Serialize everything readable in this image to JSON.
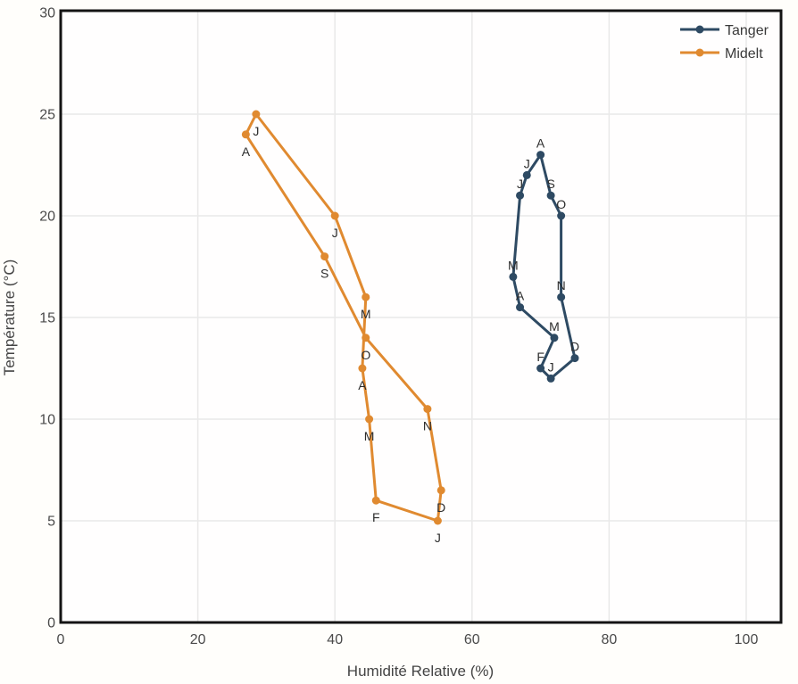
{
  "chart_data": {
    "type": "line",
    "variant": "hythergraph-climograph-closed-loop",
    "title": "",
    "xlabel": "Humidité Relative (%)",
    "ylabel": "Température (°C)",
    "xlim": [
      0,
      105
    ],
    "ylim": [
      0,
      30
    ],
    "xticks": [
      0,
      20,
      40,
      60,
      80,
      100
    ],
    "yticks": [
      0,
      5,
      10,
      15,
      20,
      25,
      30
    ],
    "grid": true,
    "legend_position": "top-right-inside",
    "month_initials": [
      "J",
      "F",
      "M",
      "A",
      "M",
      "J",
      "J",
      "A",
      "S",
      "O",
      "N",
      "D"
    ],
    "style": {
      "frame_color": "#141414",
      "grid_color": "#e9e9e9",
      "tick_color": "#4a4a4a",
      "axis_title_color": "#444444",
      "month_label_color": "#2d2d2d",
      "background": "#fffefe"
    },
    "series": [
      {
        "name": "Tanger",
        "color": "#2e4a63",
        "label_side": "above",
        "points": [
          {
            "month": "J",
            "humidity": 71.5,
            "temp": 12
          },
          {
            "month": "F",
            "humidity": 70,
            "temp": 12.5
          },
          {
            "month": "M",
            "humidity": 72,
            "temp": 14
          },
          {
            "month": "A",
            "humidity": 67,
            "temp": 15.5
          },
          {
            "month": "M",
            "humidity": 66,
            "temp": 17
          },
          {
            "month": "J",
            "humidity": 67,
            "temp": 21
          },
          {
            "month": "J",
            "humidity": 68,
            "temp": 22
          },
          {
            "month": "A",
            "humidity": 70,
            "temp": 23
          },
          {
            "month": "S",
            "humidity": 71.5,
            "temp": 21
          },
          {
            "month": "O",
            "humidity": 73,
            "temp": 20
          },
          {
            "month": "N",
            "humidity": 73,
            "temp": 16
          },
          {
            "month": "D",
            "humidity": 75,
            "temp": 13
          }
        ]
      },
      {
        "name": "Midelt",
        "color": "#e08a30",
        "label_side": "below",
        "points": [
          {
            "month": "J",
            "humidity": 55,
            "temp": 5
          },
          {
            "month": "F",
            "humidity": 46,
            "temp": 6
          },
          {
            "month": "M",
            "humidity": 45,
            "temp": 10
          },
          {
            "month": "A",
            "humidity": 44,
            "temp": 12.5
          },
          {
            "month": "M",
            "humidity": 44.5,
            "temp": 16
          },
          {
            "month": "J",
            "humidity": 40,
            "temp": 20
          },
          {
            "month": "J",
            "humidity": 28.5,
            "temp": 25
          },
          {
            "month": "A",
            "humidity": 27,
            "temp": 24
          },
          {
            "month": "S",
            "humidity": 38.5,
            "temp": 18
          },
          {
            "month": "O",
            "humidity": 44.5,
            "temp": 14
          },
          {
            "month": "N",
            "humidity": 53.5,
            "temp": 10.5
          },
          {
            "month": "D",
            "humidity": 55.5,
            "temp": 6.5
          }
        ]
      }
    ]
  }
}
